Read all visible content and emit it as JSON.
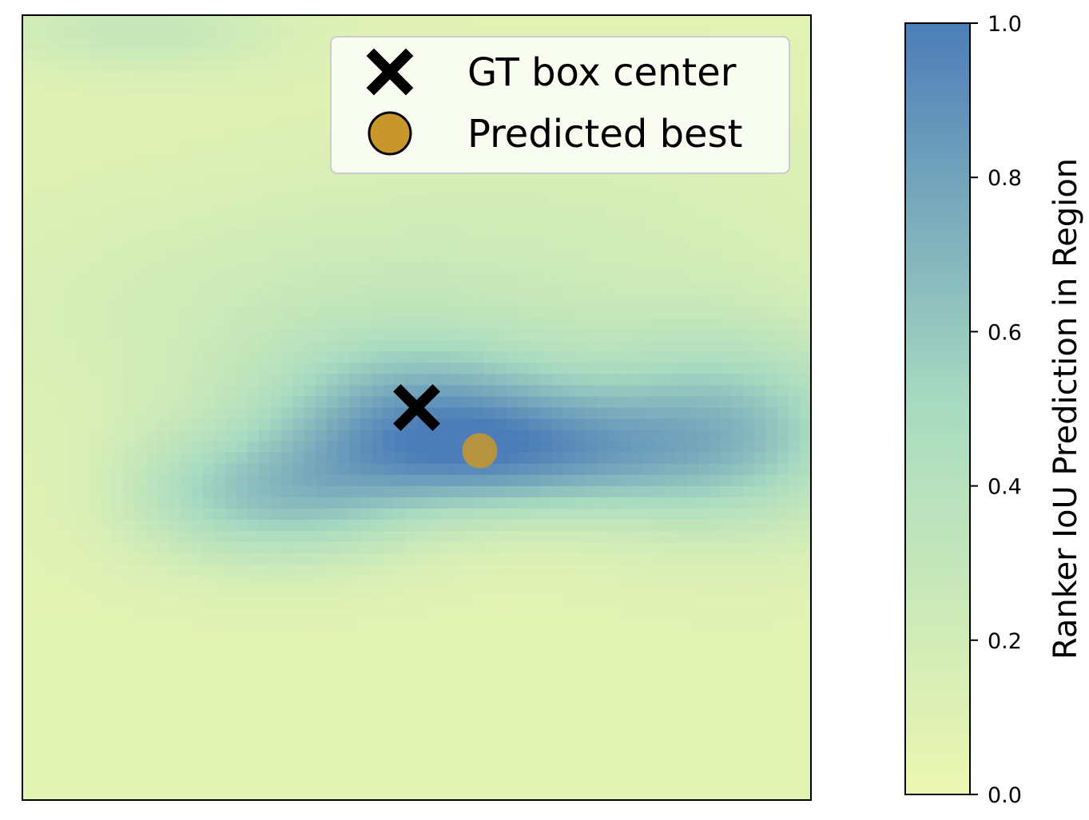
{
  "chart_data": {
    "type": "heatmap",
    "title": "",
    "xlabel": "",
    "ylabel": "",
    "colorbar": {
      "label": "Ranker IoU Prediction in Region",
      "range": [
        0.0,
        1.0
      ],
      "ticks": [
        0.0,
        0.2,
        0.4,
        0.6,
        0.8,
        1.0
      ],
      "tick_labels": [
        "0.0",
        "0.2",
        "0.4",
        "0.6",
        "0.8",
        "1.0"
      ],
      "colors": [
        "#edf7b1",
        "#a9dbc1",
        "#4c7db8"
      ]
    },
    "x_range": [
      0,
      1
    ],
    "y_range": [
      0,
      1
    ],
    "axis_ticks_visible": false,
    "grid": false,
    "legend_position": "top-right",
    "series": [
      {
        "name": "GT box center",
        "marker": "X",
        "color": "#000000",
        "points": [
          [
            0.5,
            0.5
          ]
        ]
      },
      {
        "name": "Predicted best",
        "marker": "circle",
        "color": "#c8962a",
        "points": [
          [
            0.58,
            0.445
          ]
        ]
      }
    ],
    "heatmap_blobs": [
      {
        "cx": 0.5,
        "cy": 0.5,
        "sx": 0.14,
        "sy": 0.07,
        "value": 0.45
      },
      {
        "cx": 0.62,
        "cy": 0.44,
        "sx": 0.16,
        "sy": 0.055,
        "value": 0.6
      },
      {
        "cx": 0.9,
        "cy": 0.47,
        "sx": 0.13,
        "sy": 0.09,
        "value": 0.5
      },
      {
        "cx": 0.33,
        "cy": 0.38,
        "sx": 0.12,
        "sy": 0.06,
        "value": 0.45
      },
      {
        "cx": 0.2,
        "cy": 0.4,
        "sx": 0.07,
        "sy": 0.06,
        "value": 0.1
      },
      {
        "cx": 0.45,
        "cy": 0.62,
        "sx": 0.35,
        "sy": 0.12,
        "value": 0.18
      },
      {
        "cx": 0.15,
        "cy": 0.98,
        "sx": 0.14,
        "sy": 0.04,
        "value": 0.22
      },
      {
        "cx": 0.75,
        "cy": 0.8,
        "sx": 0.3,
        "sy": 0.1,
        "value": 0.05
      }
    ]
  }
}
